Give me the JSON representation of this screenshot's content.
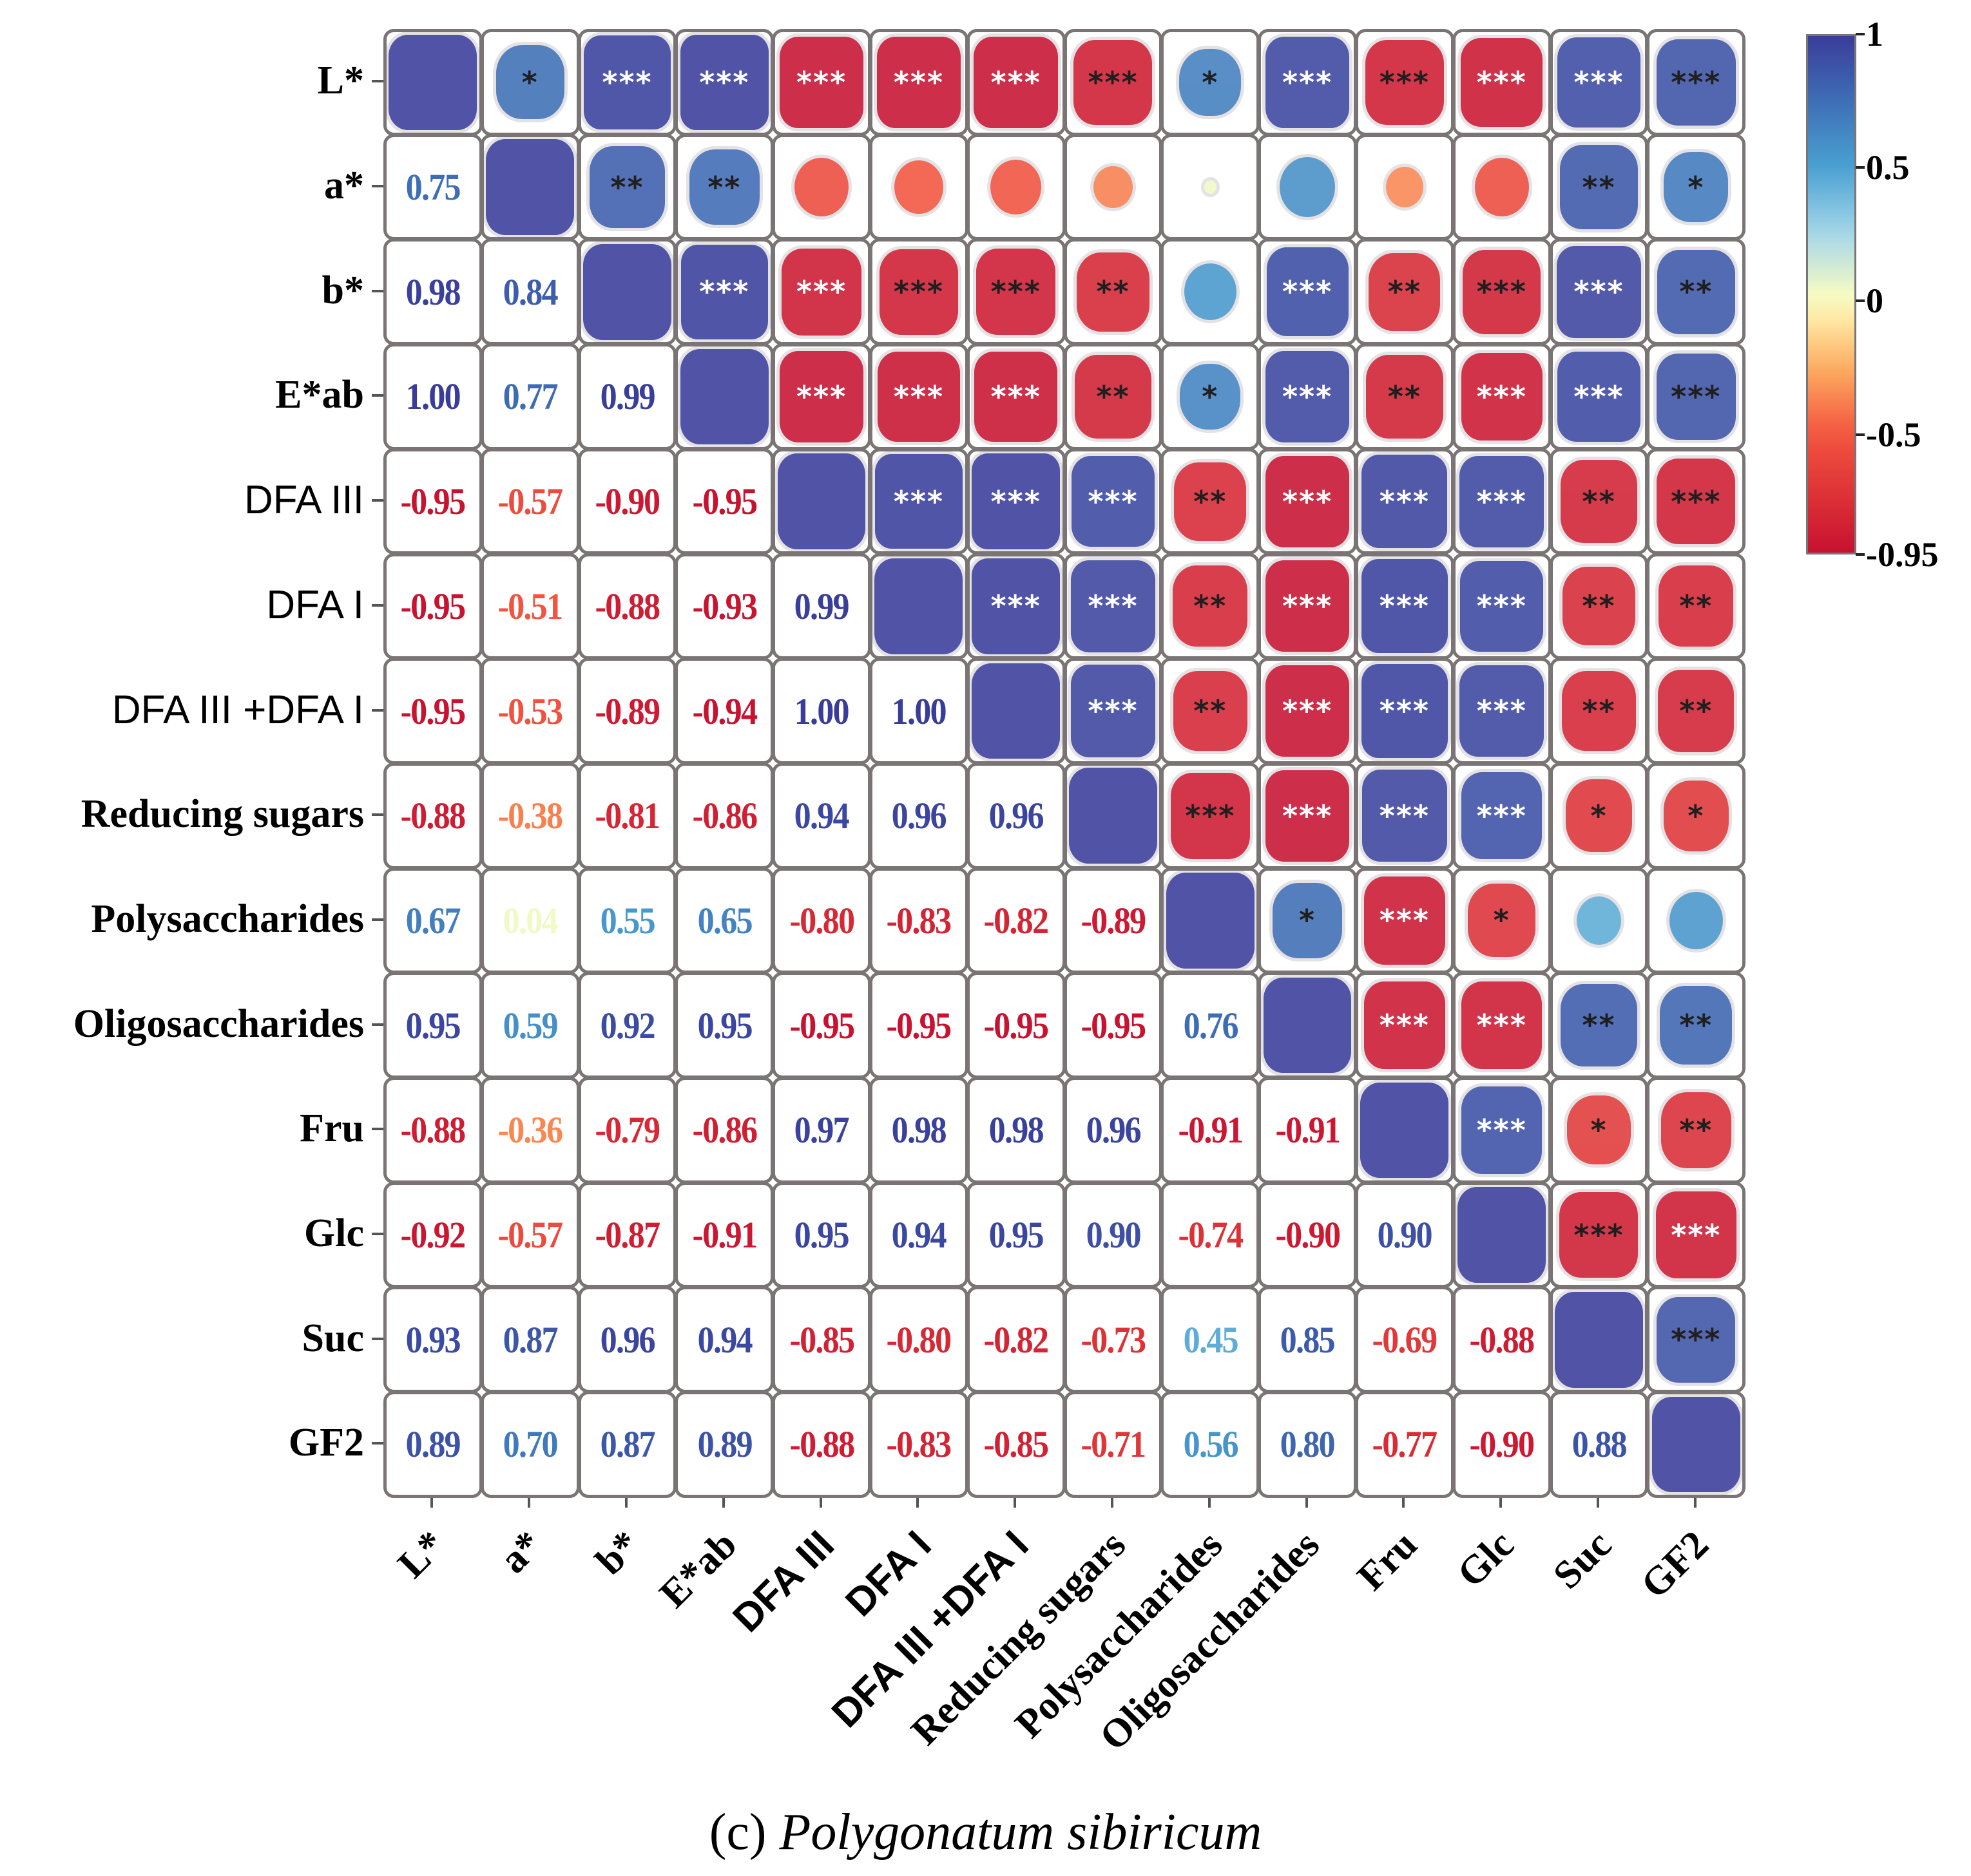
{
  "chart_data": {
    "type": "heatmap",
    "title": "",
    "caption_label": "(c)",
    "caption_species": "Polygonatum sibiricum",
    "variables": [
      "L*",
      "a*",
      "b*",
      "E*ab",
      "DFA III",
      "DFA I",
      "DFA III +DFA I",
      "Reducing sugars",
      "Polysaccharides",
      "Oligosaccharides",
      "Fru",
      "Glc",
      "Suc",
      "GF2"
    ],
    "lower_values": [
      [],
      [
        "0.75"
      ],
      [
        "0.98",
        "0.84"
      ],
      [
        "1.00",
        "0.77",
        "0.99"
      ],
      [
        "-0.95",
        "-0.57",
        "-0.90",
        "-0.95"
      ],
      [
        "-0.95",
        "-0.51",
        "-0.88",
        "-0.93",
        "0.99"
      ],
      [
        "-0.95",
        "-0.53",
        "-0.89",
        "-0.94",
        "1.00",
        "1.00"
      ],
      [
        "-0.88",
        "-0.38",
        "-0.81",
        "-0.86",
        "0.94",
        "0.96",
        "0.96"
      ],
      [
        "0.67",
        "0.04",
        "0.55",
        "0.65",
        "-0.80",
        "-0.83",
        "-0.82",
        "-0.89"
      ],
      [
        "0.95",
        "0.59",
        "0.92",
        "0.95",
        "-0.95",
        "-0.95",
        "-0.95",
        "-0.95",
        "0.76"
      ],
      [
        "-0.88",
        "-0.36",
        "-0.79",
        "-0.86",
        "0.97",
        "0.98",
        "0.98",
        "0.96",
        "-0.91",
        "-0.91"
      ],
      [
        "-0.92",
        "-0.57",
        "-0.87",
        "-0.91",
        "0.95",
        "0.94",
        "0.95",
        "0.90",
        "-0.74",
        "-0.90",
        "0.90"
      ],
      [
        "0.93",
        "0.87",
        "0.96",
        "0.94",
        "-0.85",
        "-0.80",
        "-0.82",
        "-0.73",
        "0.45",
        "0.85",
        "-0.69",
        "-0.88"
      ],
      [
        "0.89",
        "0.70",
        "0.87",
        "0.89",
        "-0.88",
        "-0.83",
        "-0.85",
        "-0.71",
        "0.56",
        "0.80",
        "-0.77",
        "-0.90",
        "0.88"
      ]
    ],
    "upper_significance": [
      [
        "*",
        "***",
        "***",
        "***",
        "***",
        "***",
        "***",
        "*",
        "***",
        "***",
        "***",
        "***",
        "***"
      ],
      [
        "**",
        "**",
        "",
        "",
        "",
        "",
        "",
        "",
        "",
        "",
        "**",
        "*"
      ],
      [
        "***",
        "***",
        "***",
        "***",
        "**",
        "",
        "***",
        "**",
        "***",
        "***",
        "**"
      ],
      [
        "***",
        "***",
        "***",
        "**",
        "*",
        "***",
        "**",
        "***",
        "***",
        "***"
      ],
      [
        "***",
        "***",
        "***",
        "**",
        "***",
        "***",
        "***",
        "**",
        "***"
      ],
      [
        "***",
        "***",
        "**",
        "***",
        "***",
        "***",
        "**",
        "**"
      ],
      [
        "***",
        "**",
        "***",
        "***",
        "***",
        "**",
        "**"
      ],
      [
        "***",
        "***",
        "***",
        "***",
        "*",
        "*"
      ],
      [
        "*",
        "***",
        "*",
        "",
        ""
      ],
      [
        "***",
        "***",
        "**",
        "**"
      ],
      [
        "***",
        "*",
        "**"
      ],
      [
        "***",
        "***"
      ],
      [
        "***"
      ]
    ],
    "colorbar": {
      "range": [
        -0.95,
        1
      ],
      "tick_values": [
        1,
        0.5,
        0,
        -0.5,
        -0.95
      ],
      "tick_labels": [
        "1",
        "0.5",
        "0",
        "-0.5",
        "-0.95"
      ]
    },
    "colormap_stops": [
      [
        -1,
        "#c20a2e"
      ],
      [
        -0.5,
        "#f4553f"
      ],
      [
        -0.25,
        "#fdae61"
      ],
      [
        0,
        "#ffffbf"
      ],
      [
        0.25,
        "#a7d7ea"
      ],
      [
        0.5,
        "#4aa2d2"
      ],
      [
        0.75,
        "#3e6fb6"
      ],
      [
        1,
        "#3a3c9a"
      ]
    ]
  }
}
